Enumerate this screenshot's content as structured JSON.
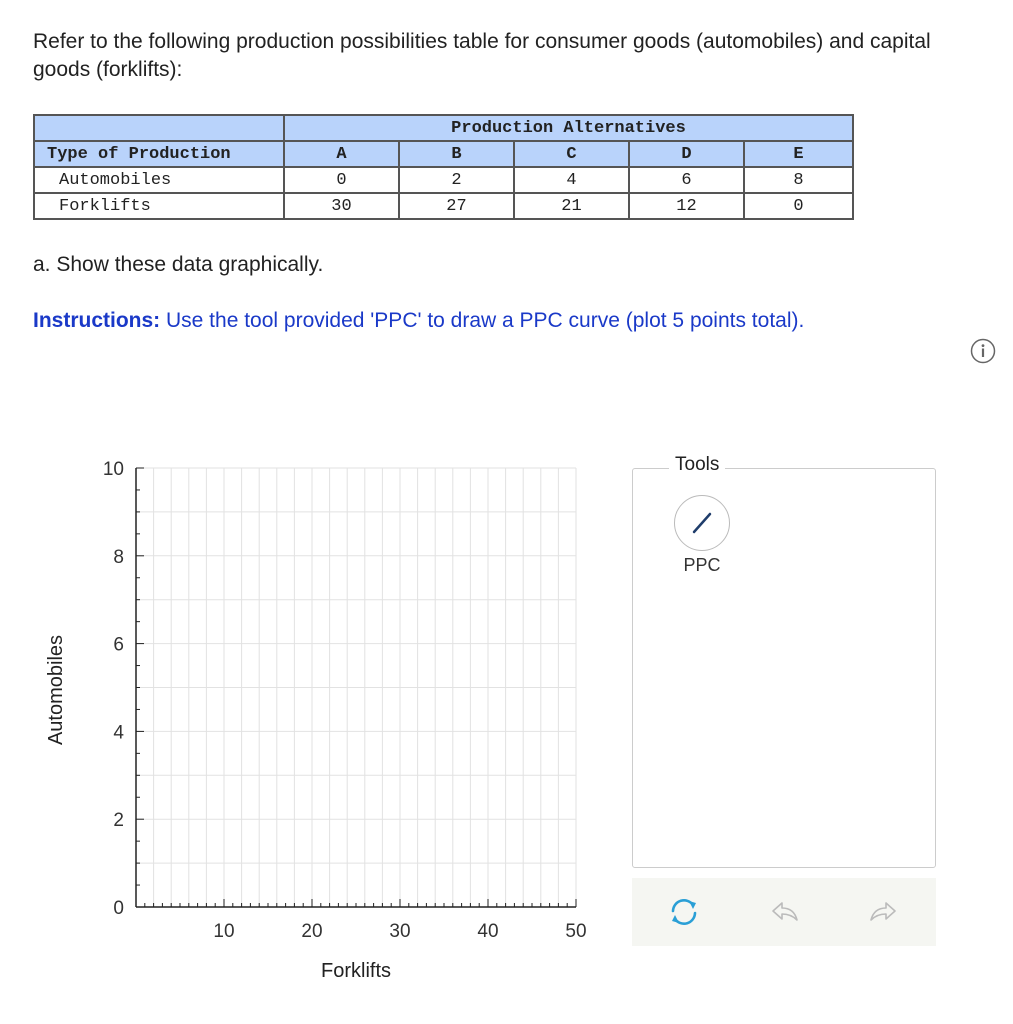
{
  "question": {
    "intro": "Refer to the following production possibilities table for consumer goods (automobiles) and capital goods (forklifts):",
    "part_a": "a. Show these data graphically.",
    "instructions_label": "Instructions:",
    "instructions_text": " Use the tool provided 'PPC' to draw a PPC curve (plot 5 points total)."
  },
  "table": {
    "group_header": "Production Alternatives",
    "type_header": "Type of Production",
    "columns": [
      "A",
      "B",
      "C",
      "D",
      "E"
    ],
    "rows": [
      {
        "label": "Automobiles",
        "values": [
          "0",
          "2",
          "4",
          "6",
          "8"
        ]
      },
      {
        "label": "Forklifts",
        "values": [
          "30",
          "27",
          "21",
          "12",
          "0"
        ]
      }
    ]
  },
  "chart_data": {
    "type": "scatter",
    "xlabel": "Forklifts",
    "ylabel": "Automobiles",
    "xlim": [
      0,
      50
    ],
    "ylim": [
      0,
      10
    ],
    "x_ticks": [
      "10",
      "20",
      "30",
      "40",
      "50"
    ],
    "y_ticks": [
      "0",
      "2",
      "4",
      "6",
      "8",
      "10"
    ],
    "x_grid_step": 2,
    "y_grid_step": 1,
    "grid": true,
    "points": []
  },
  "tools": {
    "title": "Tools",
    "ppc_label": "PPC"
  },
  "icons": {
    "info": "info-icon",
    "ppc": "line-tool-icon",
    "reset": "reset-icon",
    "undo": "undo-icon",
    "redo": "redo-icon"
  },
  "colors": {
    "table_header": "#b9d3fb",
    "instructions": "#1a39c8",
    "grid": "#e2e2e2",
    "tool_line": "#1f3d6b",
    "reset": "#2a9fd6"
  }
}
